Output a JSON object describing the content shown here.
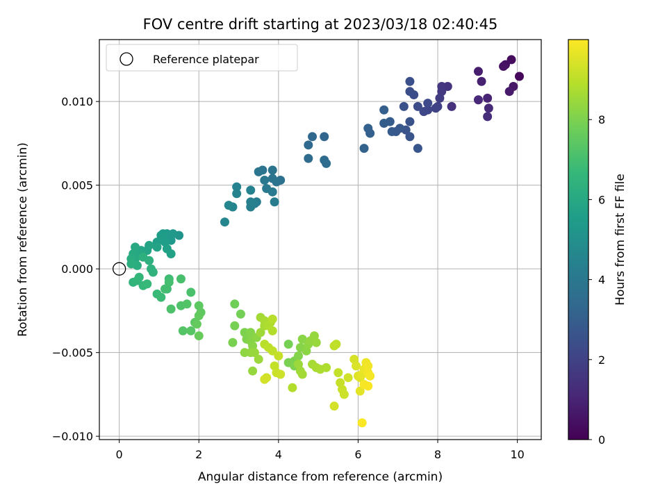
{
  "chart_data": {
    "type": "scatter",
    "title": "FOV centre drift starting at 2023/03/18 02:40:45",
    "xlabel": "Angular distance from reference (arcmin)",
    "ylabel": "Rotation from reference (arcmin)",
    "xlim": [
      -0.5,
      10.6
    ],
    "ylim": [
      -0.0102,
      0.0137
    ],
    "xticks": [
      0,
      2,
      4,
      6,
      8,
      10
    ],
    "xtick_labels": [
      "0",
      "2",
      "4",
      "6",
      "8",
      "10"
    ],
    "yticks": [
      -0.01,
      -0.005,
      0.0,
      0.005,
      0.01
    ],
    "ytick_labels": [
      "−0.010",
      "−0.005",
      "0.000",
      "0.005",
      "0.010"
    ],
    "grid": true,
    "legend": {
      "position": "top-left",
      "entries": [
        {
          "label": "Reference platepar",
          "marker": "open-circle",
          "color": "#000000"
        }
      ]
    },
    "colorbar": {
      "label": "Hours from first FF file",
      "range": [
        0,
        10
      ],
      "ticks": [
        0,
        2,
        4,
        6,
        8
      ],
      "tick_labels": [
        "0",
        "2",
        "4",
        "6",
        "8"
      ],
      "colormap": "viridis",
      "stops": [
        "#440154",
        "#482878",
        "#3e4989",
        "#31688e",
        "#26828e",
        "#1f9e89",
        "#35b779",
        "#6ece58",
        "#b5de2b",
        "#fde725"
      ]
    },
    "reference": {
      "x": 0,
      "y": 0
    },
    "series": [
      {
        "name": "FOV centre",
        "points": [
          [
            10.05,
            0.0115,
            0.2
          ],
          [
            9.85,
            0.0125,
            0.3
          ],
          [
            9.7,
            0.0122,
            0.4
          ],
          [
            9.65,
            0.0121,
            0.5
          ],
          [
            9.9,
            0.0109,
            0.6
          ],
          [
            9.8,
            0.0106,
            0.7
          ],
          [
            9.02,
            0.0118,
            0.8
          ],
          [
            9.1,
            0.0112,
            0.9
          ],
          [
            9.25,
            0.0102,
            1.0
          ],
          [
            9.02,
            0.0101,
            1.1
          ],
          [
            9.28,
            0.0096,
            1.2
          ],
          [
            9.25,
            0.0091,
            1.3
          ],
          [
            8.35,
            0.0097,
            1.4
          ],
          [
            8.25,
            0.0109,
            1.5
          ],
          [
            8.1,
            0.0109,
            1.6
          ],
          [
            8.1,
            0.0106,
            1.7
          ],
          [
            8.05,
            0.0102,
            1.8
          ],
          [
            8.0,
            0.0097,
            1.9
          ],
          [
            7.95,
            0.0096,
            2.0
          ],
          [
            7.75,
            0.0095,
            2.1
          ],
          [
            7.65,
            0.0094,
            2.2
          ],
          [
            7.75,
            0.0099,
            2.25
          ],
          [
            7.5,
            0.0097,
            2.3
          ],
          [
            7.4,
            0.0104,
            2.35
          ],
          [
            7.3,
            0.0106,
            2.4
          ],
          [
            7.3,
            0.0112,
            2.45
          ],
          [
            7.15,
            0.0097,
            2.5
          ],
          [
            7.3,
            0.0088,
            2.55
          ],
          [
            7.2,
            0.0083,
            2.6
          ],
          [
            7.3,
            0.0079,
            2.65
          ],
          [
            7.5,
            0.0072,
            2.7
          ],
          [
            7.05,
            0.0084,
            2.75
          ],
          [
            6.95,
            0.0082,
            2.8
          ],
          [
            6.85,
            0.0082,
            2.85
          ],
          [
            6.8,
            0.0088,
            2.9
          ],
          [
            6.65,
            0.0087,
            2.95
          ],
          [
            6.65,
            0.0095,
            3.0
          ],
          [
            6.3,
            0.0081,
            3.05
          ],
          [
            6.25,
            0.0084,
            3.1
          ],
          [
            6.15,
            0.0072,
            3.15
          ],
          [
            5.15,
            0.0079,
            3.3
          ],
          [
            4.85,
            0.0079,
            3.35
          ],
          [
            4.75,
            0.0074,
            3.4
          ],
          [
            4.75,
            0.0066,
            3.45
          ],
          [
            5.15,
            0.0065,
            3.5
          ],
          [
            5.2,
            0.0063,
            3.55
          ],
          [
            4.05,
            0.0053,
            3.7
          ],
          [
            3.95,
            0.0052,
            3.75
          ],
          [
            3.85,
            0.0059,
            3.8
          ],
          [
            3.85,
            0.0054,
            3.85
          ],
          [
            3.6,
            0.0059,
            3.9
          ],
          [
            3.5,
            0.0058,
            3.95
          ],
          [
            3.65,
            0.0053,
            4.0
          ],
          [
            3.7,
            0.0048,
            4.05
          ],
          [
            3.85,
            0.0046,
            4.1
          ],
          [
            3.9,
            0.004,
            4.15
          ],
          [
            3.45,
            0.004,
            4.2
          ],
          [
            3.4,
            0.0039,
            4.25
          ],
          [
            3.3,
            0.0037,
            4.3
          ],
          [
            3.3,
            0.004,
            4.35
          ],
          [
            3.3,
            0.0047,
            4.4
          ],
          [
            2.95,
            0.0049,
            4.45
          ],
          [
            2.95,
            0.0045,
            4.5
          ],
          [
            2.85,
            0.0037,
            4.55
          ],
          [
            2.75,
            0.0038,
            4.6
          ],
          [
            2.65,
            0.0028,
            4.65
          ],
          [
            1.5,
            0.002,
            5.2
          ],
          [
            1.35,
            0.0021,
            5.3
          ],
          [
            1.3,
            0.0017,
            5.35
          ],
          [
            1.2,
            0.0021,
            5.4
          ],
          [
            1.1,
            0.0021,
            5.45
          ],
          [
            1.05,
            0.002,
            5.5
          ],
          [
            1.15,
            0.0016,
            5.55
          ],
          [
            0.95,
            0.0016,
            5.6
          ],
          [
            1.2,
            0.0012,
            5.65
          ],
          [
            1.3,
            0.0009,
            5.7
          ],
          [
            0.95,
            0.0013,
            5.75
          ],
          [
            0.75,
            0.0014,
            5.8
          ],
          [
            0.7,
            0.0011,
            5.85
          ],
          [
            0.55,
            0.0011,
            5.9
          ],
          [
            0.5,
            0.0009,
            5.95
          ],
          [
            0.4,
            0.0013,
            6.0
          ],
          [
            0.35,
            0.0009,
            6.05
          ],
          [
            0.4,
            0.0006,
            6.1
          ],
          [
            0.3,
            0.0006,
            6.15
          ],
          [
            0.45,
            0.0002,
            6.2
          ],
          [
            0.3,
            0.0003,
            6.25
          ],
          [
            0.6,
            0.0007,
            6.3
          ],
          [
            0.75,
            0.0005,
            6.35
          ],
          [
            0.8,
            0.0,
            6.4
          ],
          [
            0.85,
            -0.0002,
            6.45
          ],
          [
            0.35,
            -0.0008,
            6.5
          ],
          [
            0.45,
            -0.0007,
            6.55
          ],
          [
            0.5,
            -0.0005,
            6.6
          ],
          [
            0.6,
            -0.001,
            6.65
          ],
          [
            0.7,
            -0.0009,
            6.7
          ],
          [
            0.95,
            -0.0015,
            6.75
          ],
          [
            1.05,
            -0.0017,
            6.8
          ],
          [
            1.25,
            -0.0006,
            6.85
          ],
          [
            1.2,
            -0.0012,
            6.9
          ],
          [
            1.15,
            -0.0012,
            6.95
          ],
          [
            1.25,
            -0.0008,
            7.0
          ],
          [
            1.55,
            -0.0006,
            7.05
          ],
          [
            1.8,
            -0.0014,
            7.1
          ],
          [
            1.3,
            -0.0024,
            7.15
          ],
          [
            1.55,
            -0.0022,
            7.2
          ],
          [
            1.7,
            -0.0021,
            7.25
          ],
          [
            1.6,
            -0.0037,
            7.3
          ],
          [
            1.8,
            -0.0037,
            7.35
          ],
          [
            1.9,
            -0.0032,
            7.4
          ],
          [
            2.0,
            -0.0022,
            7.45
          ],
          [
            2.05,
            -0.0026,
            7.5
          ],
          [
            2.0,
            -0.0028,
            7.55
          ],
          [
            1.95,
            -0.0033,
            7.6
          ],
          [
            2.0,
            -0.004,
            7.65
          ],
          [
            2.9,
            -0.0021,
            7.8
          ],
          [
            3.05,
            -0.0027,
            7.85
          ],
          [
            2.9,
            -0.0034,
            7.9
          ],
          [
            2.85,
            -0.0044,
            7.95
          ],
          [
            3.15,
            -0.0038,
            8.0
          ],
          [
            3.2,
            -0.0042,
            8.05
          ],
          [
            3.3,
            -0.0038,
            8.1
          ],
          [
            3.3,
            -0.0043,
            8.15
          ],
          [
            3.35,
            -0.0046,
            8.2
          ],
          [
            3.45,
            -0.0041,
            8.25
          ],
          [
            3.15,
            -0.005,
            8.3
          ],
          [
            3.3,
            -0.005,
            8.35
          ],
          [
            3.35,
            -0.0061,
            8.4
          ],
          [
            3.4,
            -0.005,
            8.45
          ],
          [
            3.5,
            -0.0054,
            8.5
          ],
          [
            3.55,
            -0.0038,
            8.55
          ],
          [
            3.55,
            -0.0029,
            8.6
          ],
          [
            3.65,
            -0.0034,
            8.65
          ],
          [
            3.65,
            -0.0031,
            8.7
          ],
          [
            3.8,
            -0.0032,
            8.75
          ],
          [
            3.75,
            -0.0034,
            8.8
          ],
          [
            3.85,
            -0.0037,
            8.85
          ],
          [
            3.85,
            -0.003,
            8.9
          ],
          [
            3.65,
            -0.0045,
            8.95
          ],
          [
            3.75,
            -0.0047,
            9.0
          ],
          [
            3.85,
            -0.0049,
            9.05
          ],
          [
            3.9,
            -0.0058,
            9.1
          ],
          [
            4.0,
            -0.0052,
            9.15
          ],
          [
            3.95,
            -0.0062,
            9.2
          ],
          [
            4.05,
            -0.0063,
            9.25
          ],
          [
            3.7,
            -0.0065,
            9.3
          ],
          [
            3.65,
            -0.0066,
            9.35
          ],
          [
            4.25,
            -0.0045,
            7.9
          ],
          [
            4.25,
            -0.0056,
            7.95
          ],
          [
            4.4,
            -0.0055,
            8.0
          ],
          [
            4.4,
            -0.0058,
            8.05
          ],
          [
            4.5,
            -0.0052,
            8.1
          ],
          [
            4.55,
            -0.0047,
            8.15
          ],
          [
            4.6,
            -0.0042,
            8.2
          ],
          [
            4.7,
            -0.0049,
            8.25
          ],
          [
            4.75,
            -0.0045,
            8.3
          ],
          [
            4.8,
            -0.0043,
            8.35
          ],
          [
            4.9,
            -0.004,
            8.4
          ],
          [
            4.95,
            -0.0044,
            8.45
          ],
          [
            4.5,
            -0.0057,
            8.5
          ],
          [
            4.55,
            -0.0061,
            8.55
          ],
          [
            4.6,
            -0.0063,
            8.6
          ],
          [
            4.85,
            -0.0057,
            8.65
          ],
          [
            4.95,
            -0.0059,
            8.7
          ],
          [
            5.05,
            -0.006,
            8.75
          ],
          [
            5.2,
            -0.0059,
            8.8
          ],
          [
            4.35,
            -0.0071,
            8.85
          ],
          [
            5.45,
            -0.0045,
            9.0
          ],
          [
            5.4,
            -0.0046,
            9.05
          ],
          [
            5.5,
            -0.0062,
            9.1
          ],
          [
            5.55,
            -0.0068,
            9.15
          ],
          [
            5.6,
            -0.0072,
            9.2
          ],
          [
            5.65,
            -0.0075,
            9.25
          ],
          [
            5.75,
            -0.0065,
            9.3
          ],
          [
            5.4,
            -0.0082,
            9.35
          ],
          [
            5.9,
            -0.0054,
            9.4
          ],
          [
            5.95,
            -0.0058,
            9.45
          ],
          [
            6.0,
            -0.0064,
            9.5
          ],
          [
            6.05,
            -0.0065,
            9.55
          ],
          [
            6.05,
            -0.0073,
            9.6
          ],
          [
            6.1,
            -0.0063,
            9.65
          ],
          [
            6.15,
            -0.006,
            9.7
          ],
          [
            6.2,
            -0.0056,
            9.75
          ],
          [
            6.25,
            -0.0058,
            9.8
          ],
          [
            6.25,
            -0.0062,
            9.85
          ],
          [
            6.3,
            -0.0064,
            9.88
          ],
          [
            6.15,
            -0.0069,
            9.9
          ],
          [
            6.25,
            -0.007,
            9.92
          ],
          [
            6.1,
            -0.0092,
            9.95
          ]
        ]
      }
    ]
  }
}
